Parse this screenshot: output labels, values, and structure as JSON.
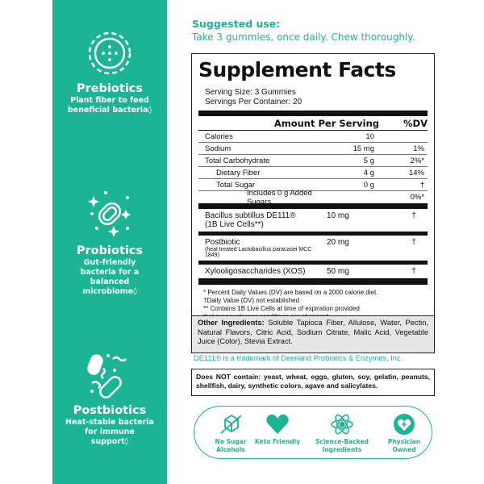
{
  "sidebar": {
    "items": [
      {
        "icon": "prebiotic-flower-icon",
        "title": "Prebiotics",
        "desc": "Plant fiber to feed beneficial bacteria◊"
      },
      {
        "icon": "probiotic-sparkle-icon",
        "title": "Probiotics",
        "desc": "Gut-friendly bacteria for a balanced microbiome◊"
      },
      {
        "icon": "postbiotic-bacteria-icon",
        "title": "Postbiotics",
        "desc": "Heat-stable bacteria for immune support◊"
      }
    ],
    "color": "#1bb494"
  },
  "suggested": {
    "heading": "Suggested use:",
    "text": "Take 3 gummies, once daily. Chew thoroughly."
  },
  "facts": {
    "title": "Supplement Facts",
    "serving_size": "Serving Size: 3 Gummies",
    "servings_per_container": "Servings Per Container: 20",
    "header_amount": "Amount Per Serving",
    "header_dv": "%DV",
    "rows": [
      {
        "name": "Calories",
        "amount": "10",
        "dv": ""
      },
      {
        "name": "Sodium",
        "amount": "15 mg",
        "dv": "1%"
      },
      {
        "name": "Total Carbohydrate",
        "amount": "5 g",
        "dv": "2%*"
      },
      {
        "name": "Dietary Fiber",
        "amount": "4 g",
        "dv": "14%"
      },
      {
        "name": "Total Sugar",
        "amount": "0 g",
        "dv": "†"
      },
      {
        "name": "Includes 0 g Added Sugars",
        "amount": "",
        "dv": "0%*"
      }
    ],
    "ingredients": [
      {
        "name": "Bacillus subtillus DE111®",
        "sub": "(1B Live Cells**)",
        "amount": "10 mg",
        "dv": "†"
      },
      {
        "name": "Postbiotic",
        "sub": "(heat treated Lactobacillus paracasei MCC 1849)",
        "amount": "20 mg",
        "dv": "†"
      },
      {
        "name": "Xylooligosaccharides (XOS)",
        "sub": "",
        "amount": "50 mg",
        "dv": "†"
      }
    ],
    "footnotes": [
      "* Percent Daily Values (DV) are based on a 2000 calorie diet.",
      "†Daily Value (DV) not established",
      "** Contains 1B Live Cells at time of expiration provided",
      "that proper storage conditions are observed"
    ],
    "other_label": "Other Ingredients:",
    "other_text": " Soluble Tapioca Fiber, Allulose, Water, Pectin, Natural Flavors, Citric Acid, Sodium Citrate, Malic Acid, Vegetable Juice (Color), Stevia Extract."
  },
  "trademark": "DE111® is a trademark of Deerland Probiotics & Enzymes, Inc.",
  "does_not_contain": "Does NOT contain: yeast, wheat, eggs, gluten, soy, gelatin, peanuts, shellfish, dairy, synthetic colors, agave and salicylates.",
  "badges": [
    {
      "icon": "no-sugar-cube-icon",
      "label": "No Sugar Alcohols"
    },
    {
      "icon": "heart-icon",
      "label": "Keto Friendly"
    },
    {
      "icon": "atom-icon",
      "label": "Science-Backed Ingredients"
    },
    {
      "icon": "heart-plus-icon",
      "label": "Physician Owned"
    }
  ]
}
